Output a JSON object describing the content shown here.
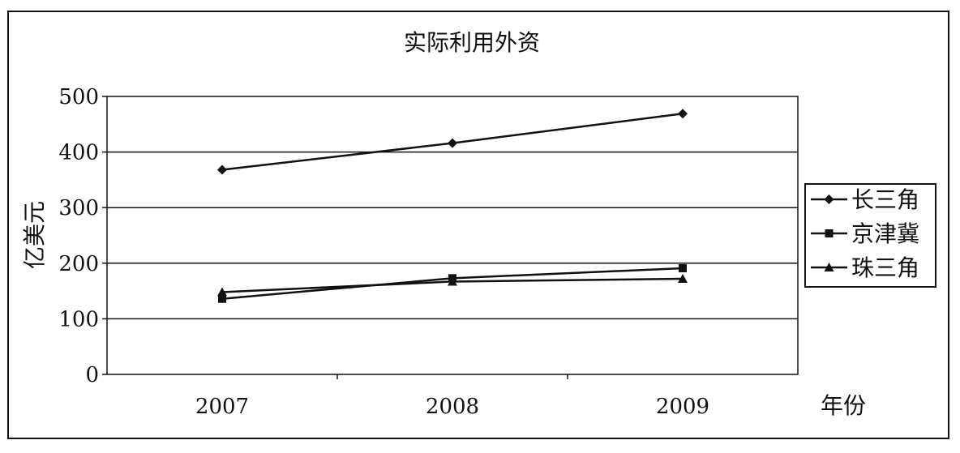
{
  "chart_data": {
    "type": "line",
    "title": "实际利用外资",
    "xlabel": "年份",
    "ylabel": "亿美元",
    "categories": [
      "2007",
      "2008",
      "2009"
    ],
    "ylim": [
      0,
      500
    ],
    "yticks": [
      "0",
      "100",
      "200",
      "300",
      "400",
      "500"
    ],
    "grid": true,
    "legend_position": "right",
    "series": [
      {
        "name": "长三角",
        "marker": "diamond",
        "values": [
          368,
          416,
          469
        ]
      },
      {
        "name": "京津冀",
        "marker": "square",
        "values": [
          136,
          173,
          191
        ]
      },
      {
        "name": "珠三角",
        "marker": "triangle",
        "values": [
          148,
          167,
          172
        ]
      }
    ],
    "line_color": "#111111"
  }
}
